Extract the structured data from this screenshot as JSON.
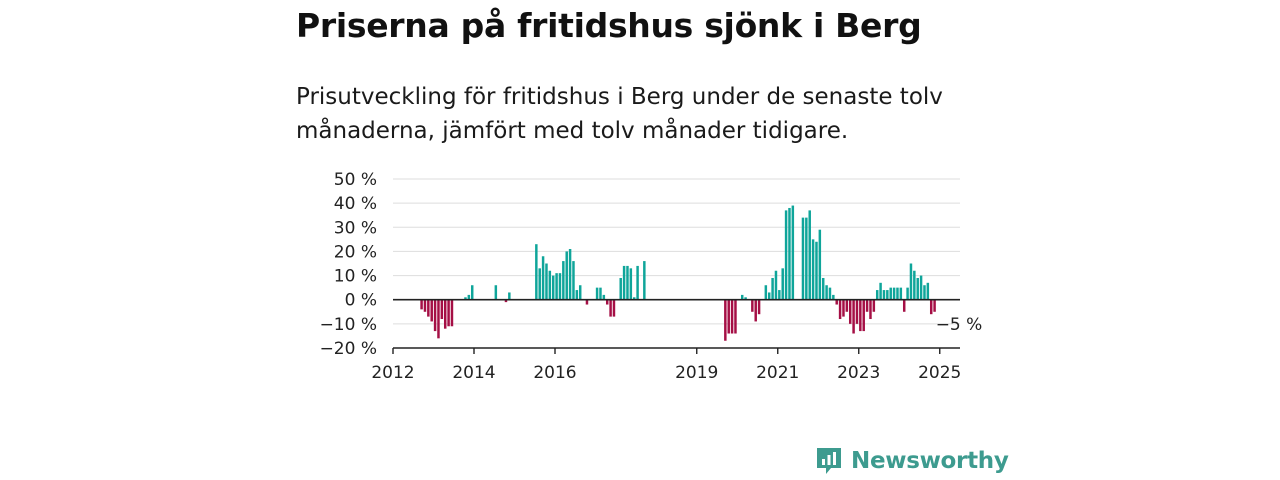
{
  "title": "Priserna på fritidshus sjönk i Berg",
  "subtitle": "Prisutveckling för fritidshus i Berg under de senaste tolv månaderna, jämfört med tolv månader tidigare.",
  "brand": "Newsworthy",
  "colors": {
    "positive": "#0fa59a",
    "negative": "#a50f45",
    "brand": "#3d9b8f"
  },
  "chart_data": {
    "type": "bar",
    "title": "Priserna på fritidshus sjönk i Berg",
    "subtitle": "Prisutveckling för fritidshus i Berg under de senaste tolv månaderna, jämfört med tolv månader tidigare.",
    "xlabel": "",
    "ylabel": "",
    "y_unit": "%",
    "ylim": [
      -20,
      50
    ],
    "yticks": [
      50,
      40,
      30,
      20,
      10,
      0,
      -10,
      -20
    ],
    "ytick_labels": [
      "50 %",
      "40 %",
      "30 %",
      "20 %",
      "10 %",
      "0 %",
      "−10 %",
      "−20 %"
    ],
    "xlim": [
      "2012-01",
      "2025-12"
    ],
    "xticks": [
      "2012-01",
      "2014-01",
      "2016-01",
      "2019-07",
      "2021-07",
      "2023-07",
      "2025-07"
    ],
    "xtick_labels": [
      "2012",
      "2014",
      "2016",
      "2019",
      "2021",
      "2023",
      "2025"
    ],
    "grid": true,
    "end_label": "−5 %",
    "series": [
      {
        "data": [
          [
            "2012-09",
            -4
          ],
          [
            "2012-10",
            -5
          ],
          [
            "2012-11",
            -7
          ],
          [
            "2012-12",
            -9
          ],
          [
            "2013-01",
            -13
          ],
          [
            "2013-02",
            -16
          ],
          [
            "2013-03",
            -8
          ],
          [
            "2013-04",
            -12
          ],
          [
            "2013-05",
            -11
          ],
          [
            "2013-06",
            -11
          ],
          [
            "2013-10",
            1
          ],
          [
            "2013-11",
            2
          ],
          [
            "2013-12",
            6
          ],
          [
            "2014-07",
            6
          ],
          [
            "2014-10",
            -1
          ],
          [
            "2014-11",
            3
          ],
          [
            "2015-07",
            23
          ],
          [
            "2015-08",
            13
          ],
          [
            "2015-09",
            18
          ],
          [
            "2015-10",
            15
          ],
          [
            "2015-11",
            12
          ],
          [
            "2015-12",
            10
          ],
          [
            "2016-01",
            11
          ],
          [
            "2016-02",
            11
          ],
          [
            "2016-03",
            16
          ],
          [
            "2016-04",
            20
          ],
          [
            "2016-05",
            21
          ],
          [
            "2016-06",
            16
          ],
          [
            "2016-07",
            4
          ],
          [
            "2016-08",
            6
          ],
          [
            "2016-10",
            -2
          ],
          [
            "2017-01",
            5
          ],
          [
            "2017-02",
            5
          ],
          [
            "2017-03",
            2
          ],
          [
            "2017-04",
            -2
          ],
          [
            "2017-05",
            -7
          ],
          [
            "2017-06",
            -7
          ],
          [
            "2017-08",
            9
          ],
          [
            "2017-09",
            14
          ],
          [
            "2017-10",
            14
          ],
          [
            "2017-11",
            13
          ],
          [
            "2017-12",
            1
          ],
          [
            "2018-01",
            14
          ],
          [
            "2018-03",
            16
          ],
          [
            "2020-03",
            -17
          ],
          [
            "2020-04",
            -14
          ],
          [
            "2020-05",
            -14
          ],
          [
            "2020-06",
            -14
          ],
          [
            "2020-08",
            2
          ],
          [
            "2020-09",
            1
          ],
          [
            "2020-11",
            -5
          ],
          [
            "2020-12",
            -9
          ],
          [
            "2021-01",
            -6
          ],
          [
            "2021-03",
            6
          ],
          [
            "2021-04",
            3
          ],
          [
            "2021-05",
            9
          ],
          [
            "2021-06",
            12
          ],
          [
            "2021-07",
            4
          ],
          [
            "2021-08",
            13
          ],
          [
            "2021-09",
            37
          ],
          [
            "2021-10",
            38
          ],
          [
            "2021-11",
            39
          ],
          [
            "2022-02",
            34
          ],
          [
            "2022-03",
            34
          ],
          [
            "2022-04",
            37
          ],
          [
            "2022-05",
            25
          ],
          [
            "2022-06",
            24
          ],
          [
            "2022-07",
            29
          ],
          [
            "2022-08",
            9
          ],
          [
            "2022-09",
            6
          ],
          [
            "2022-10",
            5
          ],
          [
            "2022-11",
            2
          ],
          [
            "2022-12",
            -2
          ],
          [
            "2023-01",
            -8
          ],
          [
            "2023-02",
            -7
          ],
          [
            "2023-03",
            -5
          ],
          [
            "2023-04",
            -10
          ],
          [
            "2023-05",
            -14
          ],
          [
            "2023-06",
            -10
          ],
          [
            "2023-07",
            -13
          ],
          [
            "2023-08",
            -13
          ],
          [
            "2023-09",
            -5
          ],
          [
            "2023-10",
            -8
          ],
          [
            "2023-11",
            -5
          ],
          [
            "2023-12",
            4
          ],
          [
            "2024-01",
            7
          ],
          [
            "2024-02",
            4
          ],
          [
            "2024-03",
            4
          ],
          [
            "2024-04",
            5
          ],
          [
            "2024-05",
            5
          ],
          [
            "2024-06",
            5
          ],
          [
            "2024-07",
            5
          ],
          [
            "2024-08",
            -5
          ],
          [
            "2024-09",
            5
          ],
          [
            "2024-10",
            15
          ],
          [
            "2024-11",
            12
          ],
          [
            "2024-12",
            9
          ],
          [
            "2025-01",
            10
          ],
          [
            "2025-02",
            6
          ],
          [
            "2025-03",
            7
          ],
          [
            "2025-04",
            -6
          ],
          [
            "2025-05",
            -5
          ]
        ]
      }
    ]
  }
}
